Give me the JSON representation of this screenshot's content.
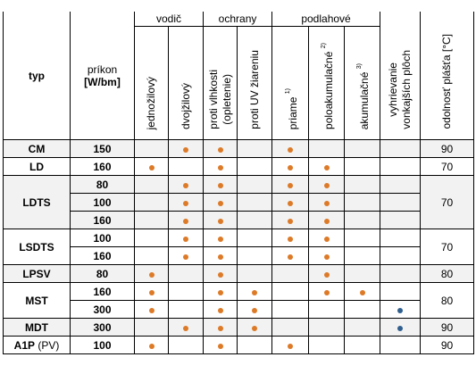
{
  "header": {
    "typ": "typ",
    "prikon": "príkon",
    "prikon_unit": "[W/bm]",
    "groups": [
      "vodič",
      "ochrany",
      "podlahové"
    ],
    "columns": [
      {
        "lines": [
          "jednožilový"
        ]
      },
      {
        "lines": [
          "dvojžilový"
        ]
      },
      {
        "lines": [
          "proti vlhkosti",
          "(opletenie)"
        ]
      },
      {
        "lines": [
          "proti UV žiareniu"
        ]
      },
      {
        "lines": [
          "priame"
        ],
        "sup": "1)"
      },
      {
        "lines": [
          "poloakumulačné"
        ],
        "sup": "2)"
      },
      {
        "lines": [
          "akumulačné"
        ],
        "sup": "3)"
      },
      {
        "lines": [
          "vyhrievanie",
          "vonkajších plôch"
        ]
      }
    ],
    "odolnost": "odolnosť plášťa [°C]"
  },
  "colors": {
    "orange": "#dd7a27",
    "blue": "#2f5f8f"
  },
  "groups": [
    {
      "typ": "CM",
      "odolnost": "90",
      "rows": [
        {
          "prikon": "150",
          "dots": [
            null,
            "orange",
            "orange",
            null,
            "orange",
            null,
            null,
            null
          ]
        }
      ]
    },
    {
      "typ": "LD",
      "odolnost": "70",
      "rows": [
        {
          "prikon": "160",
          "dots": [
            "orange",
            null,
            "orange",
            null,
            "orange",
            "orange",
            null,
            null
          ]
        }
      ]
    },
    {
      "typ": "LDTS",
      "odolnost": "70",
      "rows": [
        {
          "prikon": "80",
          "dots": [
            null,
            "orange",
            "orange",
            null,
            "orange",
            "orange",
            null,
            null
          ]
        },
        {
          "prikon": "100",
          "dots": [
            null,
            "orange",
            "orange",
            null,
            "orange",
            "orange",
            null,
            null
          ]
        },
        {
          "prikon": "160",
          "dots": [
            null,
            "orange",
            "orange",
            null,
            "orange",
            "orange",
            null,
            null
          ]
        }
      ]
    },
    {
      "typ": "LSDTS",
      "odolnost": "70",
      "rows": [
        {
          "prikon": "100",
          "dots": [
            null,
            "orange",
            "orange",
            null,
            "orange",
            "orange",
            null,
            null
          ]
        },
        {
          "prikon": "160",
          "dots": [
            null,
            "orange",
            "orange",
            null,
            "orange",
            "orange",
            null,
            null
          ]
        }
      ]
    },
    {
      "typ": "LPSV",
      "odolnost": "80",
      "rows": [
        {
          "prikon": "80",
          "dots": [
            "orange",
            null,
            "orange",
            null,
            null,
            "orange",
            null,
            null
          ]
        }
      ]
    },
    {
      "typ": "MST",
      "odolnost": "80",
      "rows": [
        {
          "prikon": "160",
          "dots": [
            "orange",
            null,
            "orange",
            "orange",
            null,
            "orange",
            "orange",
            null
          ]
        },
        {
          "prikon": "300",
          "dots": [
            "orange",
            null,
            "orange",
            "orange",
            null,
            null,
            null,
            "blue"
          ]
        }
      ]
    },
    {
      "typ": "MDT",
      "odolnost": "90",
      "rows": [
        {
          "prikon": "300",
          "dots": [
            null,
            "orange",
            "orange",
            "orange",
            null,
            null,
            null,
            "blue"
          ]
        }
      ]
    },
    {
      "typ": "A1P",
      "typ_note": "(PV)",
      "odolnost": "90",
      "rows": [
        {
          "prikon": "100",
          "dots": [
            "orange",
            null,
            "orange",
            null,
            "orange",
            null,
            null,
            null
          ]
        }
      ]
    }
  ]
}
